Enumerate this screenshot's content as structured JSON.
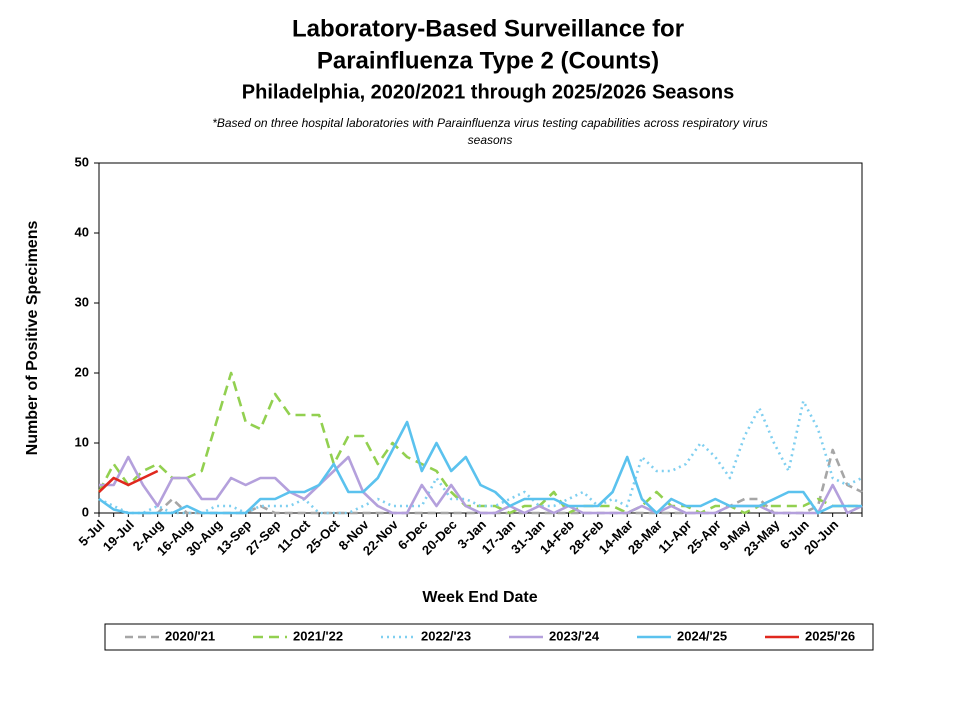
{
  "chart_data": {
    "type": "line",
    "title": "Laboratory-Based Surveillance for",
    "title_line2": "Parainfluenza Type 2 (Counts)",
    "subtitle": "Philadelphia, 2020/2021 through 2025/2026 Seasons",
    "note": "*Based on three hospital laboratories with Parainfluenza virus testing capabilities across respiratory virus",
    "note_line2": "seasons",
    "x_label": "Week End Date",
    "y_label": "Number of Positive Specimens",
    "categories": [
      "5-Jul",
      null,
      "19-Jul",
      null,
      "2-Aug",
      null,
      "16-Aug",
      null,
      "30-Aug",
      null,
      "13-Sep",
      null,
      "27-Sep",
      null,
      "11-Oct",
      null,
      "25-Oct",
      null,
      "8-Nov",
      null,
      "22-Nov",
      null,
      "6-Dec",
      null,
      "20-Dec",
      null,
      "3-Jan",
      null,
      "17-Jan",
      null,
      "31-Jan",
      null,
      "14-Feb",
      null,
      "28-Feb",
      null,
      "14-Mar",
      null,
      "28-Mar",
      null,
      "11-Apr",
      null,
      "25-Apr",
      null,
      "9-May",
      null,
      "23-May",
      null,
      "6-Jun",
      null,
      "20-Jun",
      null,
      null
    ],
    "ylim": [
      0,
      50
    ],
    "yticks": [
      0,
      10,
      20,
      30,
      40,
      50
    ],
    "series": [
      {
        "name": "2020/'21",
        "color": "#a6a6a6",
        "dash": "8,5",
        "values": [
          null,
          null,
          null,
          0,
          0,
          2,
          0,
          0,
          0,
          0,
          0,
          1,
          0,
          0,
          0,
          0,
          0,
          0,
          0,
          0,
          0,
          0,
          0,
          0,
          0,
          0,
          0,
          0,
          0,
          0,
          0,
          0,
          0,
          0,
          0,
          0,
          0,
          0,
          0,
          0,
          0,
          0,
          0,
          1,
          2,
          2,
          0,
          0,
          0,
          1,
          9,
          4,
          3
        ]
      },
      {
        "name": "2021/'22",
        "color": "#92d050",
        "dash": "10,6",
        "values": [
          3,
          7,
          4,
          6,
          7,
          5,
          5,
          6,
          13,
          20,
          13,
          12,
          17,
          14,
          14,
          14,
          7,
          11,
          11,
          7,
          10,
          8,
          7,
          6,
          3,
          1,
          1,
          1,
          0,
          1,
          1,
          3,
          0,
          1,
          1,
          1,
          0,
          1,
          3,
          1,
          1,
          0,
          1,
          1,
          0,
          1,
          1,
          1,
          1,
          2,
          1,
          1,
          1
        ]
      },
      {
        "name": "2022/'23",
        "color": "#7fcff0",
        "dash": "2,4",
        "values": [
          2,
          1,
          0,
          0,
          1,
          0,
          0,
          0,
          1,
          1,
          0,
          1,
          1,
          1,
          2,
          0,
          0,
          0,
          1,
          2,
          1,
          1,
          1,
          5,
          2,
          2,
          1,
          1,
          2,
          3,
          1,
          1,
          2,
          3,
          1,
          2,
          1,
          8,
          6,
          6,
          7,
          10,
          8,
          5,
          11,
          15,
          10,
          6,
          16,
          12,
          5,
          4,
          5
        ]
      },
      {
        "name": "2023/'24",
        "color": "#b4a0dc",
        "dash": "",
        "values": [
          4,
          4,
          8,
          4,
          1,
          5,
          5,
          2,
          2,
          5,
          4,
          5,
          5,
          3,
          2,
          4,
          6,
          8,
          3,
          1,
          0,
          0,
          4,
          1,
          4,
          1,
          0,
          0,
          1,
          0,
          1,
          0,
          1,
          0,
          0,
          0,
          0,
          1,
          0,
          1,
          0,
          0,
          0,
          1,
          1,
          1,
          0,
          0,
          0,
          0,
          4,
          0,
          1
        ]
      },
      {
        "name": "2024/'25",
        "color": "#5bc2ee",
        "dash": "",
        "values": [
          2,
          0.5,
          0,
          0,
          0,
          0,
          1,
          0,
          0,
          0,
          0,
          2,
          2,
          3,
          3,
          4,
          7,
          3,
          3,
          5,
          9,
          13,
          6,
          10,
          6,
          8,
          4,
          3,
          1,
          2,
          2,
          2,
          1,
          1,
          1,
          3,
          8,
          2,
          0,
          2,
          1,
          1,
          2,
          1,
          1,
          1,
          2,
          3,
          3,
          0,
          1,
          1,
          1
        ]
      },
      {
        "name": "2025/'26",
        "color": "#e0281e",
        "dash": "",
        "values": [
          3,
          5,
          4,
          5,
          6,
          null,
          null,
          null,
          null,
          null,
          null,
          null,
          null,
          null,
          null,
          null,
          null,
          null,
          null,
          null,
          null,
          null,
          null,
          null,
          null,
          null,
          null,
          null,
          null,
          null,
          null,
          null,
          null,
          null,
          null,
          null,
          null,
          null,
          null,
          null,
          null,
          null,
          null,
          null,
          null,
          null,
          null,
          null,
          null,
          null,
          null,
          null,
          null
        ]
      }
    ]
  }
}
